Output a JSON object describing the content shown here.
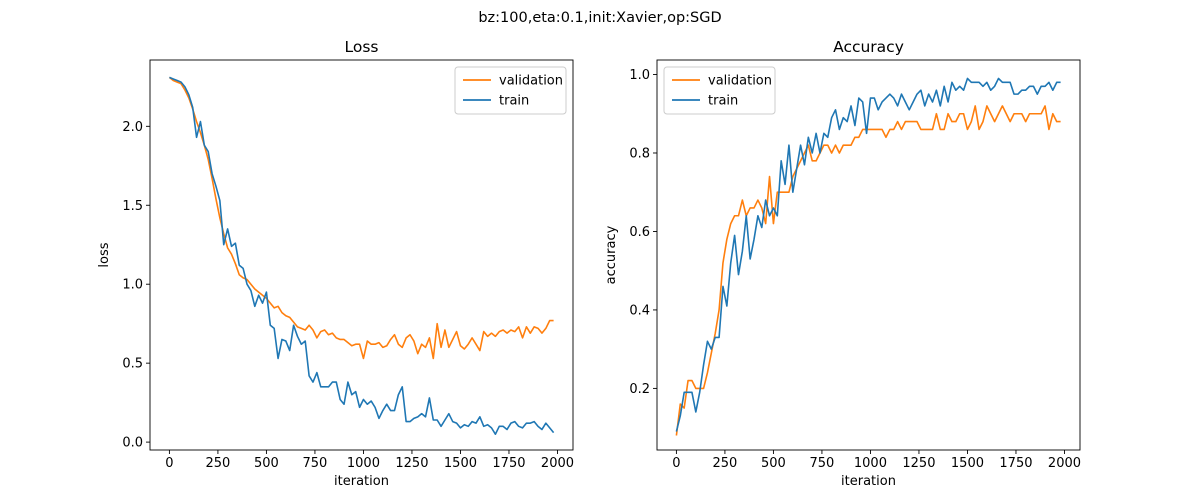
{
  "figure": {
    "suptitle": "bz:100,eta:0.1,init:Xavier,op:SGD"
  },
  "colors": {
    "validation": "#ff7f0e",
    "train": "#1f77b4"
  },
  "chart_data": [
    {
      "type": "line",
      "title": "Loss",
      "xlabel": "iteration",
      "ylabel": "loss",
      "xlim": [
        -100,
        2080
      ],
      "ylim": [
        -0.05,
        2.42
      ],
      "xticks": [
        0,
        250,
        500,
        750,
        1000,
        1250,
        1500,
        1750,
        2000
      ],
      "yticks": [
        0.0,
        0.5,
        1.0,
        1.5,
        2.0
      ],
      "ytick_labels": [
        "0.0",
        "0.5",
        "1.0",
        "1.5",
        "2.0"
      ],
      "legend_position": "upper right",
      "series": [
        {
          "name": "validation",
          "color": "#ff7f0e",
          "x": [
            0,
            20,
            40,
            60,
            80,
            100,
            120,
            140,
            160,
            180,
            200,
            220,
            240,
            260,
            280,
            300,
            320,
            340,
            360,
            380,
            400,
            420,
            440,
            460,
            480,
            500,
            520,
            540,
            560,
            580,
            600,
            620,
            640,
            660,
            680,
            700,
            720,
            740,
            760,
            780,
            800,
            820,
            840,
            860,
            880,
            900,
            920,
            940,
            960,
            980,
            1000,
            1020,
            1040,
            1060,
            1080,
            1100,
            1120,
            1140,
            1160,
            1180,
            1200,
            1220,
            1240,
            1260,
            1280,
            1300,
            1320,
            1340,
            1360,
            1380,
            1400,
            1420,
            1440,
            1460,
            1480,
            1500,
            1520,
            1540,
            1560,
            1580,
            1600,
            1620,
            1640,
            1660,
            1680,
            1700,
            1720,
            1740,
            1760,
            1780,
            1800,
            1820,
            1840,
            1860,
            1880,
            1900,
            1920,
            1940,
            1960,
            1980
          ],
          "y": [
            2.31,
            2.29,
            2.28,
            2.27,
            2.23,
            2.18,
            2.11,
            2.03,
            1.96,
            1.88,
            1.79,
            1.67,
            1.54,
            1.42,
            1.32,
            1.23,
            1.19,
            1.13,
            1.06,
            1.04,
            1.03,
            1.0,
            0.97,
            0.95,
            0.93,
            0.91,
            0.88,
            0.85,
            0.86,
            0.82,
            0.8,
            0.79,
            0.76,
            0.73,
            0.72,
            0.71,
            0.74,
            0.71,
            0.66,
            0.7,
            0.71,
            0.68,
            0.69,
            0.66,
            0.65,
            0.65,
            0.63,
            0.61,
            0.62,
            0.62,
            0.53,
            0.64,
            0.62,
            0.62,
            0.63,
            0.6,
            0.61,
            0.65,
            0.68,
            0.62,
            0.6,
            0.66,
            0.68,
            0.64,
            0.56,
            0.62,
            0.6,
            0.66,
            0.53,
            0.75,
            0.6,
            0.71,
            0.6,
            0.65,
            0.7,
            0.61,
            0.59,
            0.62,
            0.66,
            0.62,
            0.58,
            0.7,
            0.67,
            0.69,
            0.67,
            0.7,
            0.71,
            0.69,
            0.71,
            0.7,
            0.73,
            0.66,
            0.73,
            0.69,
            0.73,
            0.72,
            0.69,
            0.72,
            0.77,
            0.77
          ]
        },
        {
          "name": "train",
          "color": "#1f77b4",
          "x": [
            0,
            20,
            40,
            60,
            80,
            100,
            120,
            140,
            160,
            180,
            200,
            220,
            240,
            260,
            280,
            300,
            320,
            340,
            360,
            380,
            400,
            420,
            440,
            460,
            480,
            500,
            520,
            540,
            560,
            580,
            600,
            620,
            640,
            660,
            680,
            700,
            720,
            740,
            760,
            780,
            800,
            820,
            840,
            860,
            880,
            900,
            920,
            940,
            960,
            980,
            1000,
            1020,
            1040,
            1060,
            1080,
            1100,
            1120,
            1140,
            1160,
            1180,
            1200,
            1220,
            1240,
            1260,
            1280,
            1300,
            1320,
            1340,
            1360,
            1380,
            1400,
            1420,
            1440,
            1460,
            1480,
            1500,
            1520,
            1540,
            1560,
            1580,
            1600,
            1620,
            1640,
            1660,
            1680,
            1700,
            1720,
            1740,
            1760,
            1780,
            1800,
            1820,
            1840,
            1860,
            1880,
            1900,
            1920,
            1940,
            1960,
            1980
          ],
          "y": [
            2.31,
            2.3,
            2.29,
            2.28,
            2.25,
            2.2,
            2.12,
            1.93,
            2.03,
            1.88,
            1.84,
            1.7,
            1.62,
            1.53,
            1.25,
            1.35,
            1.24,
            1.26,
            1.12,
            1.1,
            1.0,
            0.96,
            0.86,
            0.93,
            0.88,
            0.95,
            0.74,
            0.72,
            0.53,
            0.65,
            0.64,
            0.58,
            0.74,
            0.67,
            0.62,
            0.64,
            0.42,
            0.38,
            0.44,
            0.35,
            0.35,
            0.35,
            0.38,
            0.38,
            0.27,
            0.24,
            0.38,
            0.3,
            0.32,
            0.22,
            0.27,
            0.24,
            0.26,
            0.22,
            0.15,
            0.2,
            0.24,
            0.2,
            0.2,
            0.3,
            0.35,
            0.13,
            0.13,
            0.15,
            0.16,
            0.18,
            0.16,
            0.28,
            0.14,
            0.14,
            0.1,
            0.14,
            0.18,
            0.13,
            0.12,
            0.09,
            0.11,
            0.1,
            0.13,
            0.12,
            0.16,
            0.1,
            0.11,
            0.09,
            0.05,
            0.1,
            0.1,
            0.08,
            0.12,
            0.13,
            0.1,
            0.09,
            0.12,
            0.12,
            0.13,
            0.1,
            0.08,
            0.12,
            0.09,
            0.06
          ]
        }
      ]
    },
    {
      "type": "line",
      "title": "Accuracy",
      "xlabel": "iteration",
      "ylabel": "accuracy",
      "xlim": [
        -100,
        2080
      ],
      "ylim": [
        0.043,
        1.037
      ],
      "xticks": [
        0,
        250,
        500,
        750,
        1000,
        1250,
        1500,
        1750,
        2000
      ],
      "yticks": [
        0.2,
        0.4,
        0.6,
        0.8,
        1.0
      ],
      "ytick_labels": [
        "0.2",
        "0.4",
        "0.6",
        "0.8",
        "1.0"
      ],
      "legend_position": "upper left",
      "series": [
        {
          "name": "validation",
          "color": "#ff7f0e",
          "x": [
            0,
            20,
            40,
            60,
            80,
            100,
            120,
            140,
            160,
            180,
            200,
            220,
            240,
            260,
            280,
            300,
            320,
            340,
            360,
            380,
            400,
            420,
            440,
            460,
            480,
            500,
            520,
            540,
            560,
            580,
            600,
            620,
            640,
            660,
            680,
            700,
            720,
            740,
            760,
            780,
            800,
            820,
            840,
            860,
            880,
            900,
            920,
            940,
            960,
            980,
            1000,
            1020,
            1040,
            1060,
            1080,
            1100,
            1120,
            1140,
            1160,
            1180,
            1200,
            1220,
            1240,
            1260,
            1280,
            1300,
            1320,
            1340,
            1360,
            1380,
            1400,
            1420,
            1440,
            1460,
            1480,
            1500,
            1520,
            1540,
            1560,
            1580,
            1600,
            1620,
            1640,
            1660,
            1680,
            1700,
            1720,
            1740,
            1760,
            1780,
            1800,
            1820,
            1840,
            1860,
            1880,
            1900,
            1920,
            1940,
            1960,
            1980
          ],
          "y": [
            0.08,
            0.16,
            0.15,
            0.22,
            0.22,
            0.2,
            0.2,
            0.2,
            0.24,
            0.29,
            0.34,
            0.4,
            0.52,
            0.58,
            0.62,
            0.64,
            0.64,
            0.68,
            0.64,
            0.66,
            0.66,
            0.68,
            0.66,
            0.62,
            0.74,
            0.62,
            0.7,
            0.7,
            0.7,
            0.7,
            0.74,
            0.76,
            0.78,
            0.8,
            0.82,
            0.78,
            0.78,
            0.8,
            0.82,
            0.82,
            0.8,
            0.82,
            0.8,
            0.82,
            0.82,
            0.82,
            0.84,
            0.84,
            0.86,
            0.86,
            0.86,
            0.86,
            0.86,
            0.86,
            0.84,
            0.86,
            0.86,
            0.88,
            0.86,
            0.88,
            0.88,
            0.88,
            0.88,
            0.86,
            0.86,
            0.86,
            0.86,
            0.9,
            0.86,
            0.86,
            0.9,
            0.88,
            0.88,
            0.9,
            0.9,
            0.86,
            0.88,
            0.92,
            0.86,
            0.88,
            0.92,
            0.9,
            0.88,
            0.9,
            0.92,
            0.9,
            0.88,
            0.9,
            0.9,
            0.9,
            0.88,
            0.9,
            0.9,
            0.9,
            0.9,
            0.92,
            0.86,
            0.9,
            0.88,
            0.88
          ]
        },
        {
          "name": "train",
          "color": "#1f77b4",
          "x": [
            0,
            20,
            40,
            60,
            80,
            100,
            120,
            140,
            160,
            180,
            200,
            220,
            240,
            260,
            280,
            300,
            320,
            340,
            360,
            380,
            400,
            420,
            440,
            460,
            480,
            500,
            520,
            540,
            560,
            580,
            600,
            620,
            640,
            660,
            680,
            700,
            720,
            740,
            760,
            780,
            800,
            820,
            840,
            860,
            880,
            900,
            920,
            940,
            960,
            980,
            1000,
            1020,
            1040,
            1060,
            1080,
            1100,
            1120,
            1140,
            1160,
            1180,
            1200,
            1220,
            1240,
            1260,
            1280,
            1300,
            1320,
            1340,
            1360,
            1380,
            1400,
            1420,
            1440,
            1460,
            1480,
            1500,
            1520,
            1540,
            1560,
            1580,
            1600,
            1620,
            1640,
            1660,
            1680,
            1700,
            1720,
            1740,
            1760,
            1780,
            1800,
            1820,
            1840,
            1860,
            1880,
            1900,
            1920,
            1940,
            1960,
            1980
          ],
          "y": [
            0.09,
            0.13,
            0.19,
            0.19,
            0.19,
            0.14,
            0.19,
            0.26,
            0.32,
            0.3,
            0.33,
            0.33,
            0.46,
            0.41,
            0.52,
            0.59,
            0.49,
            0.55,
            0.64,
            0.53,
            0.58,
            0.64,
            0.61,
            0.68,
            0.64,
            0.66,
            0.64,
            0.78,
            0.72,
            0.82,
            0.7,
            0.76,
            0.82,
            0.77,
            0.84,
            0.8,
            0.85,
            0.8,
            0.85,
            0.84,
            0.89,
            0.91,
            0.86,
            0.89,
            0.88,
            0.92,
            0.87,
            0.94,
            0.93,
            0.85,
            0.94,
            0.94,
            0.91,
            0.93,
            0.94,
            0.95,
            0.94,
            0.92,
            0.95,
            0.93,
            0.91,
            0.93,
            0.95,
            0.96,
            0.92,
            0.95,
            0.93,
            0.96,
            0.92,
            0.97,
            0.93,
            0.98,
            0.96,
            0.97,
            0.96,
            0.99,
            0.98,
            0.98,
            0.98,
            0.97,
            0.98,
            0.96,
            0.97,
            0.99,
            0.98,
            0.98,
            0.98,
            0.95,
            0.95,
            0.96,
            0.96,
            0.97,
            0.97,
            0.95,
            0.97,
            0.97,
            0.98,
            0.96,
            0.98,
            0.98
          ]
        }
      ]
    }
  ]
}
